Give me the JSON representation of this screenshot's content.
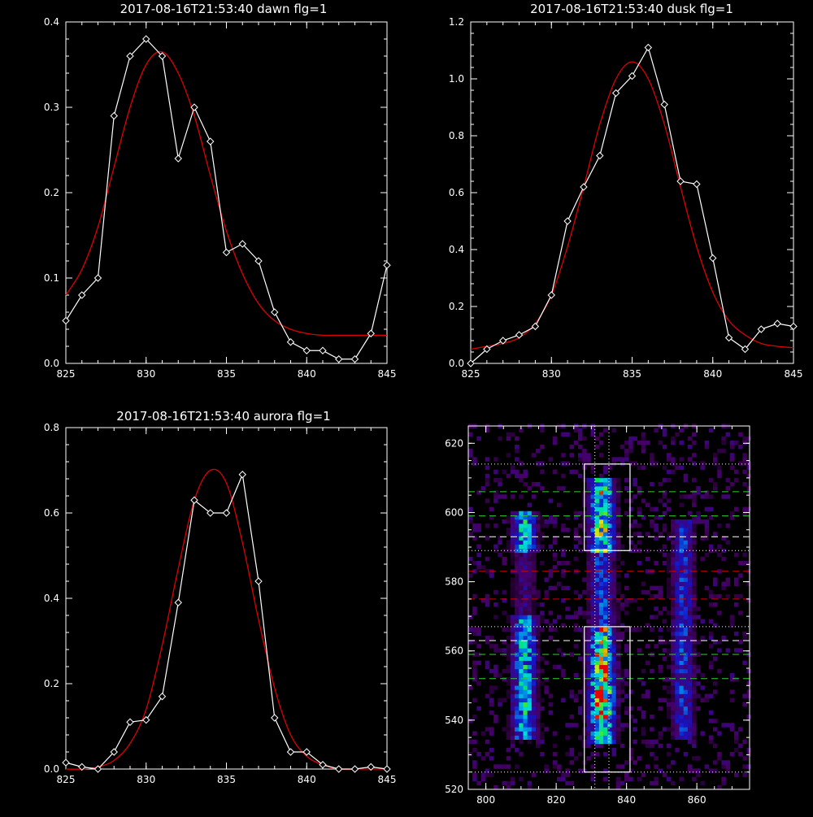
{
  "colors": {
    "background": "#000000",
    "axes": "#ffffff",
    "data_line": "#ffffff",
    "fit_line": "#dd0000",
    "green_dashed": "#33cc33",
    "red_dashed": "#cc0000",
    "white_dashed": "#ffffff",
    "dotted": "#ffffff"
  },
  "chart_data": [
    {
      "type": "line",
      "title": "2017-08-16T21:53:40 dawn flg=1",
      "xlim": [
        825,
        845
      ],
      "ylim": [
        0,
        0.4
      ],
      "xticks": [
        "825",
        "830",
        "835",
        "840",
        "845"
      ],
      "yticks": [
        "0.0",
        "0.1",
        "0.2",
        "0.3",
        "0.4"
      ],
      "series": [
        {
          "marker": "diamond",
          "x": [
            825,
            826,
            827,
            828,
            829,
            830,
            831,
            832,
            833,
            834,
            835,
            836,
            837,
            838,
            839,
            840,
            841,
            842,
            843,
            844,
            845
          ],
          "y": [
            0.05,
            0.08,
            0.1,
            0.29,
            0.36,
            0.38,
            0.36,
            0.24,
            0.3,
            0.26,
            0.13,
            0.14,
            0.12,
            0.06,
            0.025,
            0.015,
            0.015,
            0.005,
            0.005,
            0.035,
            0.115
          ]
        },
        {
          "style": "fit",
          "x": [
            825,
            826,
            827,
            828,
            829,
            830,
            831,
            832,
            833,
            834,
            835,
            836,
            837,
            838,
            839,
            840,
            841,
            842,
            843,
            844,
            845
          ],
          "y": [
            0.08,
            0.11,
            0.16,
            0.23,
            0.3,
            0.35,
            0.365,
            0.34,
            0.29,
            0.22,
            0.155,
            0.105,
            0.07,
            0.05,
            0.04,
            0.035,
            0.033,
            0.033,
            0.033,
            0.033,
            0.033
          ]
        }
      ]
    },
    {
      "type": "line",
      "title": "2017-08-16T21:53:40 dusk flg=1",
      "xlim": [
        825,
        845
      ],
      "ylim": [
        0,
        1.2
      ],
      "xticks": [
        "825",
        "830",
        "835",
        "840",
        "845"
      ],
      "yticks": [
        "0.0",
        "0.2",
        "0.4",
        "0.6",
        "0.8",
        "1.0",
        "1.2"
      ],
      "series": [
        {
          "marker": "diamond",
          "x": [
            825,
            826,
            827,
            828,
            829,
            830,
            831,
            832,
            833,
            834,
            835,
            836,
            837,
            838,
            839,
            840,
            841,
            842,
            843,
            844,
            845
          ],
          "y": [
            0.0,
            0.05,
            0.08,
            0.1,
            0.13,
            0.24,
            0.5,
            0.62,
            0.73,
            0.95,
            1.01,
            1.11,
            0.91,
            0.64,
            0.63,
            0.37,
            0.09,
            0.05,
            0.12,
            0.14,
            0.13
          ]
        },
        {
          "style": "fit",
          "x": [
            825,
            826,
            827,
            828,
            829,
            830,
            831,
            832,
            833,
            834,
            835,
            836,
            837,
            838,
            839,
            840,
            841,
            842,
            843,
            844,
            845
          ],
          "y": [
            0.05,
            0.06,
            0.07,
            0.09,
            0.14,
            0.24,
            0.41,
            0.62,
            0.84,
            1.0,
            1.06,
            1.0,
            0.84,
            0.62,
            0.41,
            0.25,
            0.15,
            0.1,
            0.07,
            0.06,
            0.055
          ]
        }
      ]
    },
    {
      "type": "line",
      "title": "2017-08-16T21:53:40 aurora flg=1",
      "xlim": [
        825,
        845
      ],
      "ylim": [
        0,
        0.8
      ],
      "xticks": [
        "825",
        "830",
        "835",
        "840",
        "845"
      ],
      "yticks": [
        "0.0",
        "0.2",
        "0.4",
        "0.6",
        "0.8"
      ],
      "series": [
        {
          "marker": "diamond",
          "x": [
            825,
            826,
            827,
            828,
            829,
            830,
            831,
            832,
            833,
            834,
            835,
            836,
            837,
            838,
            839,
            840,
            841,
            842,
            843,
            844,
            845
          ],
          "y": [
            0.015,
            0.005,
            0.0,
            0.04,
            0.11,
            0.115,
            0.17,
            0.39,
            0.63,
            0.6,
            0.6,
            0.69,
            0.44,
            0.12,
            0.04,
            0.04,
            0.01,
            0.0,
            0.0,
            0.005,
            0.0
          ]
        },
        {
          "style": "fit",
          "x": [
            825,
            826,
            827,
            828,
            829,
            830,
            831,
            832,
            833,
            834,
            835,
            836,
            837,
            838,
            839,
            840,
            841,
            842,
            843,
            844,
            845
          ],
          "y": [
            0.0,
            0.0,
            0.005,
            0.02,
            0.06,
            0.14,
            0.29,
            0.47,
            0.63,
            0.7,
            0.67,
            0.53,
            0.35,
            0.19,
            0.08,
            0.03,
            0.01,
            0.0,
            0.0,
            0.0,
            0.0
          ]
        }
      ]
    },
    {
      "type": "heatmap",
      "title": "",
      "xlim": [
        795,
        875
      ],
      "ylim": [
        520,
        625
      ],
      "xticks": [
        "800",
        "820",
        "840",
        "860"
      ],
      "yticks": [
        "520",
        "540",
        "560",
        "580",
        "600",
        "620"
      ],
      "colormap": "rainbow (black-purple-blue-cyan-green-yellow-red)",
      "emission_columns_x": [
        811,
        833,
        856
      ],
      "boxes": [
        {
          "x0": 828,
          "x1": 841,
          "y0": 589,
          "y1": 614
        },
        {
          "x0": 828,
          "x1": 841,
          "y0": 525,
          "y1": 567
        }
      ],
      "vertical_dotted_x": [
        831,
        835
      ],
      "horizontal_dotted_y": [
        614,
        589,
        567,
        525
      ],
      "dashed_lines": [
        {
          "color": "green",
          "y": 606
        },
        {
          "color": "green",
          "y": 599
        },
        {
          "color": "white",
          "y": 593
        },
        {
          "color": "red",
          "y": 583
        },
        {
          "color": "red",
          "y": 575
        },
        {
          "color": "white",
          "y": 563
        },
        {
          "color": "green",
          "y": 559
        },
        {
          "color": "green",
          "y": 552
        }
      ]
    }
  ]
}
